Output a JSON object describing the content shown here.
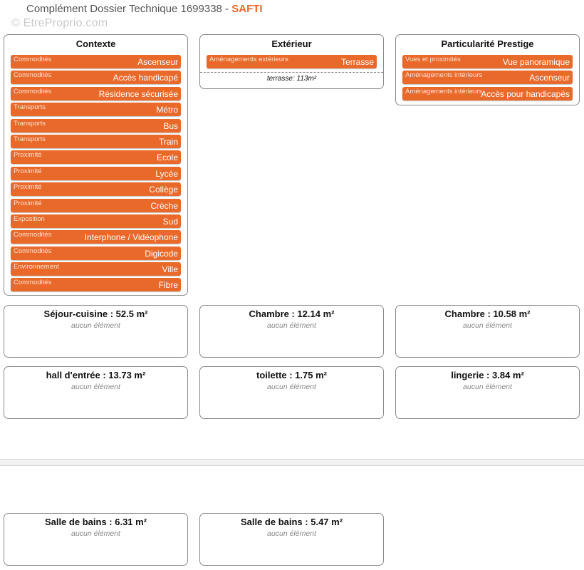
{
  "header": {
    "prefix": "Complément Dossier Technique 1699338 - ",
    "brand": "SAFTI",
    "brand_color": "#e8692a"
  },
  "watermark": "© EtreProprio.com",
  "contexte": {
    "title": "Contexte",
    "items": [
      {
        "category": "Commodités",
        "value": "Ascenseur"
      },
      {
        "category": "Commodités",
        "value": "Accès handicapé"
      },
      {
        "category": "Commodités",
        "value": "Résidence sécurisée"
      },
      {
        "category": "Transports",
        "value": "Métro"
      },
      {
        "category": "Transports",
        "value": "Bus"
      },
      {
        "category": "Transports",
        "value": "Train"
      },
      {
        "category": "Proximité",
        "value": "Ecole"
      },
      {
        "category": "Proximité",
        "value": "Lycée"
      },
      {
        "category": "Proximité",
        "value": "Collège"
      },
      {
        "category": "Proximité",
        "value": "Crèche"
      },
      {
        "category": "Exposition",
        "value": "Sud"
      },
      {
        "category": "Commodités",
        "value": "Interphone / Vidéophone"
      },
      {
        "category": "Commodités",
        "value": "Digicode"
      },
      {
        "category": "Environnement",
        "value": "Ville"
      },
      {
        "category": "Commodités",
        "value": "Fibre"
      }
    ]
  },
  "exterieur": {
    "title": "Extérieur",
    "items": [
      {
        "category": "Aménagements extérieurs",
        "value": "Terrasse"
      }
    ],
    "note": "terrasse: 113m²"
  },
  "prestige": {
    "title": "Particularité Prestige",
    "items": [
      {
        "category": "Vues et proximités",
        "value": "Vue panoramique"
      },
      {
        "category": "Aménagements intérieurs",
        "value": "Ascenseur"
      },
      {
        "category": "Aménagements intérieurs",
        "value": "Accès pour handicapés"
      }
    ]
  },
  "rooms": [
    {
      "title": "Séjour-cuisine : 52.5 m²",
      "sub": "aucun élément"
    },
    {
      "title": "Chambre : 12.14 m²",
      "sub": "aucun élément"
    },
    {
      "title": "Chambre : 10.58 m²",
      "sub": "aucun élément"
    },
    {
      "title": "hall d'entrée : 13.73 m²",
      "sub": "aucun élément"
    },
    {
      "title": "toilette : 1.75 m²",
      "sub": "aucun élément"
    },
    {
      "title": "lingerie : 3.84 m²",
      "sub": "aucun élément"
    },
    {
      "title": "Salle de bains : 6.31 m²",
      "sub": "aucun élément"
    },
    {
      "title": "Salle de bains : 5.47 m²",
      "sub": "aucun élément"
    }
  ]
}
